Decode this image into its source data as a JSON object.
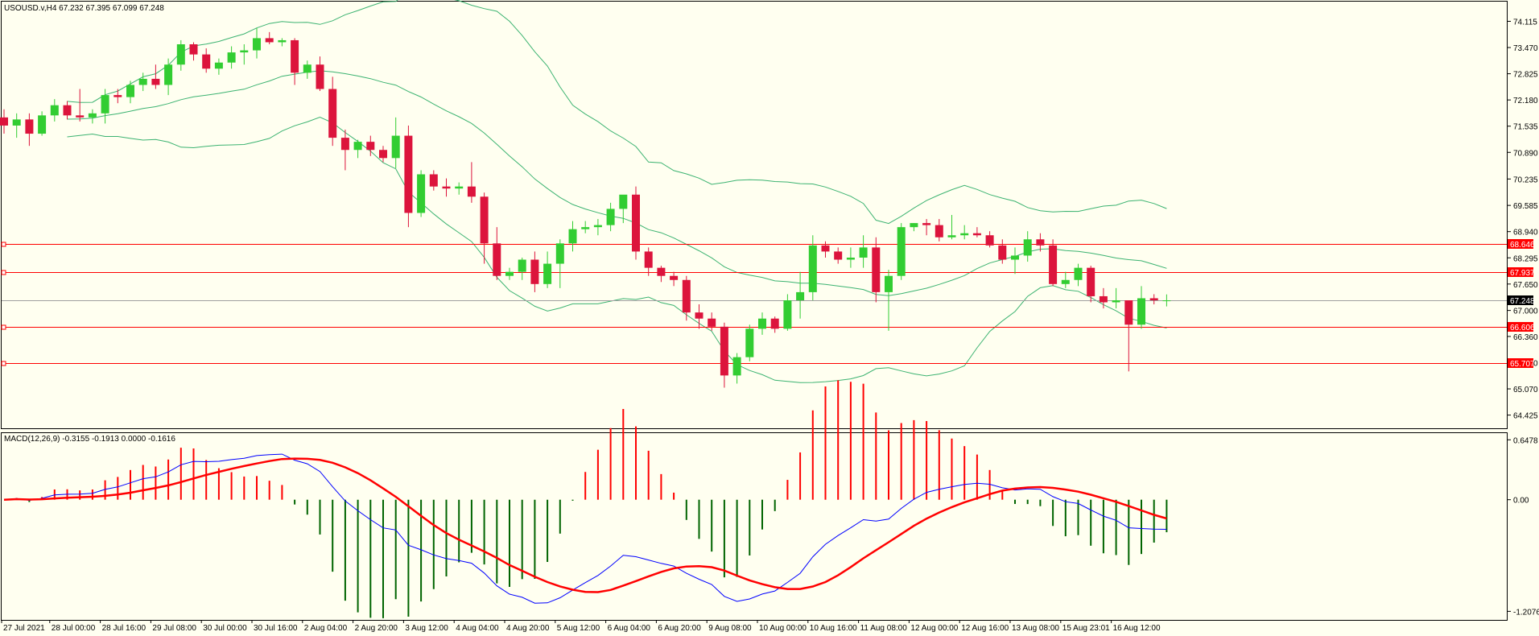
{
  "colors": {
    "background": "#fffff0",
    "bull": "#32cd32",
    "bear": "#dc143c",
    "bands": "#3cb371",
    "level_line": "#ff0000",
    "current_price": "#000000",
    "macd_main": "#0000ff",
    "macd_signal": "#ff0000",
    "hist_neg": "#006400",
    "hist_pos": "#ff0000"
  },
  "chart_data": [
    {
      "type": "candlestick",
      "title": "USOUSD.v,H4  67.232 67.395 67.099 67.248",
      "ylim": [
        64.1,
        74.6
      ],
      "y_ticks": [
        "74.115",
        "73.470",
        "72.825",
        "72.180",
        "71.535",
        "70.890",
        "70.235",
        "69.585",
        "68.940",
        "68.295",
        "67.650",
        "67.000",
        "66.360",
        "65.710",
        "65.070",
        "64.425"
      ],
      "x_ticks": [
        "27 Jul 2021",
        "28 Jul 00:00",
        "28 Jul 16:00",
        "29 Jul 08:00",
        "30 Jul 00:00",
        "30 Jul 16:00",
        "2 Aug 04:00",
        "2 Aug 20:00",
        "3 Aug 12:00",
        "4 Aug 04:00",
        "4 Aug 20:00",
        "5 Aug 12:00",
        "6 Aug 04:00",
        "6 Aug 20:00",
        "9 Aug 08:00",
        "10 Aug 00:00",
        "10 Aug 16:00",
        "11 Aug 08:00",
        "12 Aug 00:00",
        "12 Aug 16:00",
        "13 Aug 08:00",
        "15 Aug 23:01",
        "16 Aug 12:00"
      ],
      "price_levels": [
        {
          "value": 68.646,
          "label": "68.646"
        },
        {
          "value": 67.937,
          "label": "67.937"
        },
        {
          "value": 66.606,
          "label": "66.606"
        },
        {
          "value": 65.707,
          "label": "65.707"
        }
      ],
      "current_price": {
        "value": 67.248,
        "label": "67.248"
      },
      "candles": [
        [
          71.75,
          71.95,
          71.35,
          71.55
        ],
        [
          71.55,
          71.85,
          71.25,
          71.7
        ],
        [
          71.7,
          71.85,
          71.05,
          71.35
        ],
        [
          71.35,
          71.9,
          71.3,
          71.8
        ],
        [
          71.8,
          72.2,
          71.65,
          72.05
        ],
        [
          72.05,
          72.15,
          71.7,
          71.8
        ],
        [
          71.8,
          72.45,
          71.65,
          71.75
        ],
        [
          71.75,
          71.95,
          71.6,
          71.85
        ],
        [
          71.85,
          72.45,
          71.6,
          72.3
        ],
        [
          72.3,
          72.45,
          72.1,
          72.25
        ],
        [
          72.25,
          72.65,
          72.1,
          72.55
        ],
        [
          72.55,
          72.85,
          72.4,
          72.7
        ],
        [
          72.7,
          73.05,
          72.45,
          72.55
        ],
        [
          72.55,
          73.2,
          72.3,
          73.05
        ],
        [
          73.05,
          73.65,
          72.9,
          73.55
        ],
        [
          73.55,
          73.6,
          73.15,
          73.3
        ],
        [
          73.3,
          73.45,
          72.85,
          72.95
        ],
        [
          72.95,
          73.2,
          72.8,
          73.1
        ],
        [
          73.1,
          73.5,
          72.95,
          73.35
        ],
        [
          73.35,
          73.55,
          73.05,
          73.4
        ],
        [
          73.4,
          73.95,
          73.2,
          73.7
        ],
        [
          73.7,
          73.85,
          73.55,
          73.6
        ],
        [
          73.6,
          73.7,
          73.5,
          73.65
        ],
        [
          73.65,
          73.7,
          72.55,
          72.85
        ],
        [
          72.85,
          73.15,
          72.7,
          73.05
        ],
        [
          73.05,
          73.25,
          72.4,
          72.45
        ],
        [
          72.45,
          72.75,
          71.05,
          71.25
        ],
        [
          71.25,
          71.45,
          70.45,
          70.95
        ],
        [
          70.95,
          71.2,
          70.75,
          71.15
        ],
        [
          71.15,
          71.3,
          70.8,
          70.95
        ],
        [
          70.95,
          71.05,
          70.65,
          70.75
        ],
        [
          70.75,
          71.75,
          70.5,
          71.3
        ],
        [
          71.3,
          71.55,
          69.05,
          69.4
        ],
        [
          69.4,
          70.45,
          69.3,
          70.35
        ],
        [
          70.35,
          70.45,
          69.95,
          70.05
        ],
        [
          70.05,
          70.25,
          69.8,
          70.0
        ],
        [
          70.0,
          70.15,
          69.85,
          70.05
        ],
        [
          70.05,
          70.65,
          69.65,
          69.8
        ],
        [
          69.8,
          69.9,
          68.15,
          68.65
        ],
        [
          68.65,
          69.05,
          67.75,
          67.85
        ],
        [
          67.85,
          68.05,
          67.75,
          67.95
        ],
        [
          67.95,
          68.3,
          67.75,
          68.25
        ],
        [
          68.25,
          68.45,
          67.45,
          67.65
        ],
        [
          67.65,
          68.45,
          67.55,
          68.15
        ],
        [
          68.15,
          68.75,
          67.55,
          68.65
        ],
        [
          68.65,
          69.2,
          68.45,
          69.0
        ],
        [
          69.0,
          69.2,
          68.9,
          69.05
        ],
        [
          69.05,
          69.25,
          68.85,
          69.1
        ],
        [
          69.1,
          69.65,
          68.95,
          69.5
        ],
        [
          69.5,
          69.75,
          69.15,
          69.85
        ],
        [
          69.85,
          70.05,
          68.25,
          68.45
        ],
        [
          68.45,
          68.55,
          67.85,
          68.05
        ],
        [
          68.05,
          68.1,
          67.7,
          67.85
        ],
        [
          67.85,
          67.95,
          67.6,
          67.75
        ],
        [
          67.75,
          67.85,
          66.75,
          66.95
        ],
        [
          66.95,
          67.15,
          66.55,
          66.8
        ],
        [
          66.8,
          66.95,
          66.5,
          66.6
        ],
        [
          66.6,
          66.7,
          65.1,
          65.4
        ],
        [
          65.4,
          65.95,
          65.2,
          65.85
        ],
        [
          65.85,
          66.65,
          65.75,
          66.55
        ],
        [
          66.55,
          66.95,
          66.4,
          66.8
        ],
        [
          66.8,
          66.85,
          66.45,
          66.55
        ],
        [
          66.55,
          67.4,
          66.5,
          67.25
        ],
        [
          67.25,
          67.95,
          66.8,
          67.45
        ],
        [
          67.45,
          68.85,
          67.25,
          68.6
        ],
        [
          68.6,
          68.7,
          68.3,
          68.45
        ],
        [
          68.45,
          68.55,
          68.15,
          68.25
        ],
        [
          68.25,
          68.55,
          68.05,
          68.3
        ],
        [
          68.3,
          68.85,
          68.05,
          68.55
        ],
        [
          68.55,
          68.8,
          67.2,
          67.45
        ],
        [
          67.45,
          68.0,
          66.5,
          67.85
        ],
        [
          67.85,
          69.15,
          67.75,
          69.05
        ],
        [
          69.05,
          69.15,
          68.95,
          69.15
        ],
        [
          69.15,
          69.25,
          68.85,
          69.1
        ],
        [
          69.1,
          69.25,
          68.7,
          68.8
        ],
        [
          68.8,
          69.35,
          68.75,
          68.85
        ],
        [
          68.85,
          69.1,
          68.75,
          68.9
        ],
        [
          68.9,
          69.05,
          68.8,
          68.85
        ],
        [
          68.85,
          68.95,
          68.55,
          68.6
        ],
        [
          68.6,
          68.75,
          68.15,
          68.25
        ],
        [
          68.25,
          68.55,
          67.9,
          68.35
        ],
        [
          68.35,
          68.95,
          68.2,
          68.75
        ],
        [
          68.75,
          68.9,
          68.45,
          68.6
        ],
        [
          68.6,
          68.75,
          67.6,
          67.65
        ],
        [
          67.65,
          67.95,
          67.55,
          67.75
        ],
        [
          67.75,
          68.15,
          67.6,
          68.05
        ],
        [
          68.05,
          68.1,
          67.2,
          67.35
        ],
        [
          67.35,
          67.55,
          67.05,
          67.2
        ],
        [
          67.2,
          67.55,
          67.05,
          67.25
        ],
        [
          67.25,
          67.25,
          65.5,
          66.65
        ],
        [
          66.65,
          67.6,
          66.55,
          67.3
        ],
        [
          67.3,
          67.4,
          67.15,
          67.25
        ],
        [
          67.232,
          67.395,
          67.099,
          67.248
        ]
      ]
    },
    {
      "type": "macd",
      "title": "MACD(12,26,9) -0.3155 -0.1913 0.0000 -0.1616",
      "ylim": [
        -1.3,
        0.72
      ],
      "y_ticks": [
        "0.6478",
        "0.00",
        "-1.2076"
      ]
    }
  ]
}
